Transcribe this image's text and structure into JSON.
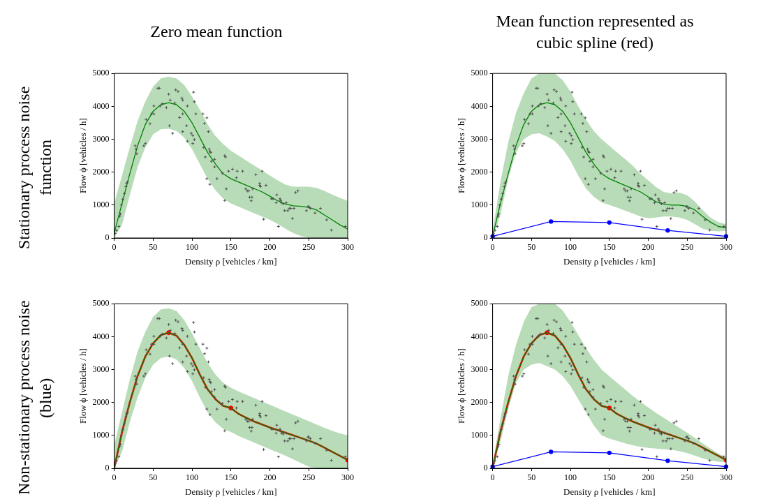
{
  "chart_data": [
    {
      "type": "line",
      "title": "Zero mean function",
      "annotations": [
        "Stationary process noise function"
      ],
      "xlabel": "Density ρ [vehicles / km]",
      "ylabel": "Flow ϕ [vehicles / h]",
      "xlim": [
        0,
        300
      ],
      "ylim": [
        0,
        5000
      ],
      "xticks": [
        0,
        50,
        100,
        150,
        200,
        250,
        300
      ],
      "yticks": [
        0,
        1000,
        2000,
        3000,
        4000,
        5000
      ],
      "grid": false,
      "legend": false,
      "x": [
        0,
        10,
        20,
        30,
        40,
        50,
        60,
        70,
        80,
        90,
        100,
        110,
        120,
        130,
        140,
        150,
        160,
        170,
        180,
        190,
        200,
        210,
        220,
        230,
        240,
        250,
        260,
        270,
        280,
        290,
        300
      ],
      "series": [
        {
          "type": "scatter",
          "marker": "cross",
          "color": "#505050",
          "x": [
            1,
            3,
            6,
            7,
            8,
            9,
            11,
            13,
            15,
            16,
            17,
            27,
            28,
            29,
            38,
            40,
            41,
            46,
            48,
            51,
            51,
            56,
            58,
            59,
            62,
            67,
            70,
            71,
            72,
            75,
            78,
            79,
            82,
            84,
            87,
            88,
            88,
            88,
            94,
            93,
            94,
            99,
            101,
            101,
            102,
            103,
            103,
            105,
            114,
            115,
            116,
            117,
            119,
            119,
            121,
            122,
            123,
            123,
            124,
            125,
            129,
            129,
            132,
            139,
            142,
            143,
            142,
            144,
            147,
            152,
            157,
            158,
            165,
            169,
            171,
            173,
            174,
            176,
            177,
            178,
            182,
            187,
            187,
            188,
            190,
            192,
            195,
            202,
            204,
            209,
            208,
            211,
            213,
            214,
            215,
            217,
            219,
            221,
            223,
            225,
            227,
            229,
            231,
            233,
            236,
            247,
            249,
            250,
            252,
            258,
            265,
            273,
            279,
            297
          ],
          "values": [
            140,
            230,
            350,
            660,
            730,
            1000,
            1180,
            1350,
            1560,
            1660,
            1700,
            2800,
            2700,
            2560,
            2800,
            2870,
            3600,
            3470,
            3770,
            3770,
            4010,
            4550,
            4550,
            4010,
            4080,
            3960,
            4370,
            3410,
            4190,
            3180,
            4100,
            4500,
            4450,
            3660,
            4250,
            4190,
            3230,
            3770,
            4010,
            3410,
            2940,
            3180,
            3110,
            2870,
            4430,
            2990,
            4140,
            3770,
            3770,
            2750,
            3480,
            2460,
            3650,
            1800,
            3230,
            2700,
            1630,
            2630,
            2600,
            2330,
            2390,
            2160,
            1800,
            1970,
            2500,
            2460,
            1140,
            1490,
            2030,
            2090,
            1830,
            2030,
            2030,
            1490,
            1430,
            1430,
            1240,
            1130,
            1240,
            1490,
            1920,
            1660,
            1600,
            1560,
            2030,
            570,
            1600,
            1190,
            1190,
            1310,
            1070,
            350,
            1190,
            1140,
            1070,
            1040,
            830,
            1070,
            830,
            900,
            900,
            590,
            900,
            1380,
            1430,
            830,
            950,
            950,
            900,
            760,
            900,
            550,
            240,
            350
          ]
        },
        {
          "type": "line",
          "color": "#008000",
          "values": [
            150,
            1050,
            1950,
            2800,
            3450,
            3850,
            4050,
            4110,
            4050,
            3850,
            3500,
            3050,
            2600,
            2250,
            1950,
            1800,
            1700,
            1600,
            1500,
            1400,
            1270,
            1130,
            1030,
            980,
            960,
            930,
            850,
            700,
            550,
            400,
            270
          ],
          "upper": [
            1050,
            1900,
            2750,
            3550,
            4150,
            4600,
            4850,
            4900,
            4850,
            4650,
            4300,
            3900,
            3450,
            3100,
            2850,
            2650,
            2500,
            2350,
            2200,
            2050,
            1900,
            1750,
            1620,
            1560,
            1560,
            1560,
            1520,
            1430,
            1320,
            1220,
            1130
          ],
          "lower": [
            0,
            400,
            1300,
            2150,
            2750,
            3150,
            3300,
            3320,
            3250,
            3050,
            2700,
            2250,
            1800,
            1450,
            1200,
            1050,
            950,
            850,
            750,
            650,
            550,
            430,
            280,
            150,
            60,
            0,
            0,
            0,
            0,
            0,
            0
          ]
        }
      ]
    },
    {
      "type": "line",
      "title": "Mean function represented as cubic spline (red)",
      "xlabel": "Density ρ [vehicles / km]",
      "ylabel": "Flow ϕ [vehicles / h]",
      "xlim": [
        0,
        300
      ],
      "ylim": [
        0,
        5000
      ],
      "xticks": [
        0,
        50,
        100,
        150,
        200,
        250,
        300
      ],
      "yticks": [
        0,
        1000,
        2000,
        3000,
        4000,
        5000
      ],
      "grid": false,
      "legend": false,
      "x": [
        0,
        10,
        20,
        30,
        40,
        50,
        60,
        70,
        80,
        90,
        100,
        110,
        120,
        130,
        140,
        150,
        160,
        170,
        180,
        190,
        200,
        210,
        220,
        230,
        240,
        250,
        260,
        270,
        280,
        290,
        300
      ],
      "series": [
        {
          "type": "scatter",
          "marker": "cross",
          "color": "#505050",
          "x": [
            1,
            3,
            6,
            7,
            8,
            9,
            11,
            13,
            15,
            16,
            17,
            27,
            28,
            29,
            38,
            40,
            41,
            46,
            48,
            51,
            51,
            56,
            58,
            59,
            62,
            67,
            70,
            71,
            72,
            75,
            78,
            79,
            82,
            84,
            87,
            88,
            88,
            88,
            94,
            93,
            94,
            99,
            101,
            101,
            102,
            103,
            103,
            105,
            114,
            115,
            116,
            117,
            119,
            119,
            121,
            122,
            123,
            123,
            124,
            125,
            129,
            129,
            132,
            139,
            142,
            143,
            142,
            144,
            147,
            152,
            157,
            158,
            165,
            169,
            171,
            173,
            174,
            176,
            177,
            178,
            182,
            187,
            187,
            188,
            190,
            192,
            195,
            202,
            204,
            209,
            208,
            211,
            213,
            214,
            215,
            217,
            219,
            221,
            223,
            225,
            227,
            229,
            231,
            233,
            236,
            247,
            249,
            250,
            252,
            258,
            265,
            273,
            279,
            297
          ],
          "values": [
            140,
            230,
            350,
            660,
            730,
            1000,
            1180,
            1350,
            1560,
            1660,
            1700,
            2800,
            2700,
            2560,
            2800,
            2870,
            3600,
            3470,
            3770,
            3770,
            4010,
            4550,
            4550,
            4010,
            4080,
            3960,
            4370,
            3410,
            4190,
            3180,
            4100,
            4500,
            4450,
            3660,
            4250,
            4190,
            3230,
            3770,
            4010,
            3410,
            2940,
            3180,
            3110,
            2870,
            4430,
            2990,
            4140,
            3770,
            3770,
            2750,
            3480,
            2460,
            3650,
            1800,
            3230,
            2700,
            1630,
            2630,
            2600,
            2330,
            2390,
            2160,
            1800,
            1970,
            2500,
            2460,
            1140,
            1490,
            2030,
            2090,
            1830,
            2030,
            2030,
            1490,
            1430,
            1430,
            1240,
            1130,
            1240,
            1490,
            1920,
            1660,
            1600,
            1560,
            2030,
            570,
            1600,
            1190,
            1190,
            1310,
            1070,
            350,
            1190,
            1140,
            1070,
            1040,
            830,
            1070,
            830,
            900,
            900,
            590,
            900,
            1380,
            1430,
            830,
            950,
            950,
            900,
            760,
            900,
            550,
            240,
            350
          ]
        },
        {
          "type": "line",
          "color": "#008000",
          "values": [
            50,
            1050,
            1950,
            2800,
            3450,
            3850,
            4050,
            4110,
            4050,
            3850,
            3500,
            3050,
            2600,
            2250,
            1950,
            1800,
            1700,
            1600,
            1500,
            1400,
            1250,
            1100,
            1030,
            1000,
            1000,
            960,
            850,
            650,
            480,
            350,
            310
          ],
          "upper": [
            200,
            1700,
            2900,
            3800,
            4400,
            4850,
            5000,
            5000,
            5000,
            4800,
            4450,
            4000,
            3600,
            3250,
            3000,
            2800,
            2600,
            2400,
            2200,
            1950,
            1750,
            1550,
            1400,
            1350,
            1380,
            1300,
            1100,
            850,
            620,
            480,
            420
          ],
          "lower": [
            0,
            700,
            1800,
            2600,
            3000,
            3150,
            3180,
            3080,
            2950,
            2700,
            2350,
            1900,
            1500,
            1250,
            1080,
            1000,
            920,
            830,
            750,
            650,
            600,
            620,
            650,
            650,
            620,
            550,
            420,
            280,
            220,
            200,
            220
          ]
        },
        {
          "type": "line",
          "marker": "circle",
          "color": "#0000ff",
          "x": [
            0,
            75,
            150,
            225,
            300
          ],
          "values": [
            50,
            500,
            470,
            230,
            50
          ]
        }
      ]
    },
    {
      "type": "line",
      "annotations": [
        "Non-stationary process noise (blue)"
      ],
      "xlabel": "Density ρ [vehicles / km]",
      "ylabel": "Flow ϕ [vehicles / h]",
      "xlim": [
        0,
        300
      ],
      "ylim": [
        0,
        5000
      ],
      "xticks": [
        0,
        50,
        100,
        150,
        200,
        250,
        300
      ],
      "yticks": [
        0,
        1000,
        2000,
        3000,
        4000,
        5000
      ],
      "grid": false,
      "legend": false,
      "x": [
        0,
        10,
        20,
        30,
        40,
        50,
        60,
        70,
        80,
        90,
        100,
        110,
        120,
        130,
        140,
        150,
        160,
        170,
        180,
        190,
        200,
        210,
        220,
        230,
        240,
        250,
        260,
        270,
        280,
        290,
        300
      ],
      "series": [
        {
          "type": "scatter",
          "marker": "cross",
          "color": "#505050",
          "x": [
            1,
            3,
            6,
            7,
            8,
            9,
            11,
            13,
            15,
            16,
            17,
            27,
            28,
            29,
            38,
            40,
            41,
            46,
            48,
            51,
            51,
            56,
            58,
            59,
            62,
            67,
            70,
            71,
            72,
            75,
            78,
            79,
            82,
            84,
            87,
            88,
            88,
            88,
            94,
            93,
            94,
            99,
            101,
            101,
            102,
            103,
            103,
            105,
            114,
            115,
            116,
            117,
            119,
            119,
            121,
            122,
            123,
            123,
            124,
            125,
            129,
            129,
            132,
            139,
            142,
            143,
            142,
            144,
            147,
            152,
            157,
            158,
            165,
            169,
            171,
            173,
            174,
            176,
            177,
            178,
            182,
            187,
            187,
            188,
            190,
            192,
            195,
            202,
            204,
            209,
            208,
            211,
            213,
            214,
            215,
            217,
            219,
            221,
            223,
            225,
            227,
            229,
            231,
            233,
            236,
            247,
            249,
            250,
            252,
            258,
            265,
            273,
            279,
            297
          ],
          "values": [
            140,
            230,
            350,
            660,
            730,
            1000,
            1180,
            1350,
            1560,
            1660,
            1700,
            2800,
            2700,
            2560,
            2800,
            2870,
            3600,
            3470,
            3770,
            3770,
            4010,
            4550,
            4550,
            4010,
            4080,
            3960,
            4370,
            3410,
            4190,
            3180,
            4100,
            4500,
            4450,
            3660,
            4250,
            4190,
            3230,
            3770,
            4010,
            3410,
            2940,
            3180,
            3110,
            2870,
            4430,
            2990,
            4140,
            3770,
            3770,
            2750,
            3480,
            2460,
            3650,
            1800,
            3230,
            2700,
            1630,
            2630,
            2600,
            2330,
            2390,
            2160,
            1800,
            1970,
            2500,
            2460,
            1140,
            1490,
            2030,
            2090,
            1830,
            2030,
            2030,
            1490,
            1430,
            1430,
            1240,
            1130,
            1240,
            1490,
            1920,
            1660,
            1600,
            1560,
            2030,
            570,
            1600,
            1190,
            1190,
            1310,
            1070,
            350,
            1190,
            1140,
            1070,
            1040,
            830,
            1070,
            830,
            900,
            900,
            590,
            900,
            1380,
            1430,
            830,
            950,
            950,
            900,
            760,
            900,
            550,
            240,
            350
          ]
        },
        {
          "type": "line",
          "color": "#008000",
          "values": [
            0,
            1100,
            2000,
            2800,
            3400,
            3800,
            4050,
            4120,
            4030,
            3750,
            3350,
            2850,
            2400,
            2100,
            1900,
            1830,
            1650,
            1530,
            1420,
            1330,
            1240,
            1160,
            1080,
            1000,
            920,
            840,
            750,
            630,
            500,
            380,
            250
          ],
          "upper": [
            700,
            1700,
            2700,
            3550,
            4150,
            4600,
            4830,
            4860,
            4780,
            4500,
            4100,
            3650,
            3200,
            2850,
            2600,
            2450,
            2330,
            2230,
            2130,
            2030,
            1930,
            1830,
            1730,
            1630,
            1530,
            1430,
            1330,
            1230,
            1140,
            1060,
            1000
          ],
          "lower": [
            0,
            500,
            1400,
            2150,
            2750,
            3150,
            3350,
            3400,
            3300,
            3050,
            2650,
            2150,
            1700,
            1400,
            1200,
            1100,
            980,
            880,
            780,
            680,
            580,
            480,
            380,
            270,
            160,
            50,
            0,
            0,
            0,
            0,
            0
          ]
        },
        {
          "type": "line",
          "color": "#ff0000",
          "values": [
            0,
            1100,
            2000,
            2800,
            3400,
            3800,
            4050,
            4120,
            4030,
            3750,
            3350,
            2850,
            2400,
            2100,
            1900,
            1830,
            1650,
            1530,
            1420,
            1330,
            1240,
            1160,
            1080,
            1000,
            920,
            840,
            750,
            630,
            500,
            380,
            250
          ]
        },
        {
          "type": "scatter",
          "marker": "circle",
          "color": "#ff0000",
          "x": [
            70,
            150,
            300
          ],
          "values": [
            4120,
            1830,
            250
          ]
        }
      ]
    },
    {
      "type": "line",
      "xlabel": "Density ρ [vehicles / km]",
      "ylabel": "Flow ϕ [vehicles / h]",
      "xlim": [
        0,
        300
      ],
      "ylim": [
        0,
        5000
      ],
      "xticks": [
        0,
        50,
        100,
        150,
        200,
        250,
        300
      ],
      "yticks": [
        0,
        1000,
        2000,
        3000,
        4000,
        5000
      ],
      "grid": false,
      "legend": false,
      "x": [
        0,
        10,
        20,
        30,
        40,
        50,
        60,
        70,
        80,
        90,
        100,
        110,
        120,
        130,
        140,
        150,
        160,
        170,
        180,
        190,
        200,
        210,
        220,
        230,
        240,
        250,
        260,
        270,
        280,
        290,
        300
      ],
      "series": [
        {
          "type": "scatter",
          "marker": "cross",
          "color": "#505050",
          "x": [
            1,
            3,
            6,
            7,
            8,
            9,
            11,
            13,
            15,
            16,
            17,
            27,
            28,
            29,
            38,
            40,
            41,
            46,
            48,
            51,
            51,
            56,
            58,
            59,
            62,
            67,
            70,
            71,
            72,
            75,
            78,
            79,
            82,
            84,
            87,
            88,
            88,
            88,
            94,
            93,
            94,
            99,
            101,
            101,
            102,
            103,
            103,
            105,
            114,
            115,
            116,
            117,
            119,
            119,
            121,
            122,
            123,
            123,
            124,
            125,
            129,
            129,
            132,
            139,
            142,
            143,
            142,
            144,
            147,
            152,
            157,
            158,
            165,
            169,
            171,
            173,
            174,
            176,
            177,
            178,
            182,
            187,
            187,
            188,
            190,
            192,
            195,
            202,
            204,
            209,
            208,
            211,
            213,
            214,
            215,
            217,
            219,
            221,
            223,
            225,
            227,
            229,
            231,
            233,
            236,
            247,
            249,
            250,
            252,
            258,
            265,
            273,
            279,
            297
          ],
          "values": [
            140,
            230,
            350,
            660,
            730,
            1000,
            1180,
            1350,
            1560,
            1660,
            1700,
            2800,
            2700,
            2560,
            2800,
            2870,
            3600,
            3470,
            3770,
            3770,
            4010,
            4550,
            4550,
            4010,
            4080,
            3960,
            4370,
            3410,
            4190,
            3180,
            4100,
            4500,
            4450,
            3660,
            4250,
            4190,
            3230,
            3770,
            4010,
            3410,
            2940,
            3180,
            3110,
            2870,
            4430,
            2990,
            4140,
            3770,
            3770,
            2750,
            3480,
            2460,
            3650,
            1800,
            3230,
            2700,
            1630,
            2630,
            2600,
            2330,
            2390,
            2160,
            1800,
            1970,
            2500,
            2460,
            1140,
            1490,
            2030,
            2090,
            1830,
            2030,
            2030,
            1490,
            1430,
            1430,
            1240,
            1130,
            1240,
            1490,
            1920,
            1660,
            1600,
            1560,
            2030,
            570,
            1600,
            1190,
            1190,
            1310,
            1070,
            350,
            1190,
            1140,
            1070,
            1040,
            830,
            1070,
            830,
            900,
            900,
            590,
            900,
            1380,
            1430,
            830,
            950,
            950,
            900,
            760,
            900,
            550,
            240,
            350
          ]
        },
        {
          "type": "line",
          "color": "#008000",
          "values": [
            0,
            1100,
            2000,
            2800,
            3400,
            3800,
            4050,
            4120,
            4030,
            3750,
            3350,
            2850,
            2400,
            2100,
            1900,
            1830,
            1650,
            1530,
            1420,
            1330,
            1240,
            1160,
            1080,
            1000,
            920,
            840,
            750,
            630,
            500,
            380,
            250
          ],
          "upper": [
            150,
            1500,
            2800,
            3750,
            4450,
            4900,
            5000,
            5000,
            5000,
            4800,
            4450,
            4050,
            3650,
            3300,
            3000,
            2800,
            2600,
            2400,
            2200,
            2020,
            1850,
            1680,
            1530,
            1380,
            1230,
            1080,
            920,
            760,
            600,
            450,
            330
          ],
          "lower": [
            0,
            800,
            1800,
            2600,
            3000,
            3150,
            3200,
            3100,
            3000,
            2800,
            2500,
            2100,
            1700,
            1300,
            1000,
            900,
            830,
            760,
            700,
            650,
            620,
            600,
            580,
            560,
            520,
            460,
            380,
            300,
            240,
            200,
            180
          ]
        },
        {
          "type": "line",
          "color": "#ff0000",
          "values": [
            0,
            1100,
            2000,
            2800,
            3400,
            3800,
            4050,
            4120,
            4030,
            3750,
            3350,
            2850,
            2400,
            2100,
            1900,
            1830,
            1650,
            1530,
            1420,
            1330,
            1240,
            1160,
            1080,
            1000,
            920,
            840,
            750,
            630,
            500,
            380,
            250
          ]
        },
        {
          "type": "scatter",
          "marker": "circle",
          "color": "#ff0000",
          "x": [
            70,
            150,
            300
          ],
          "values": [
            4120,
            1830,
            250
          ]
        },
        {
          "type": "line",
          "marker": "circle",
          "color": "#0000ff",
          "x": [
            0,
            75,
            150,
            225,
            300
          ],
          "values": [
            50,
            500,
            470,
            230,
            50
          ]
        }
      ]
    }
  ]
}
